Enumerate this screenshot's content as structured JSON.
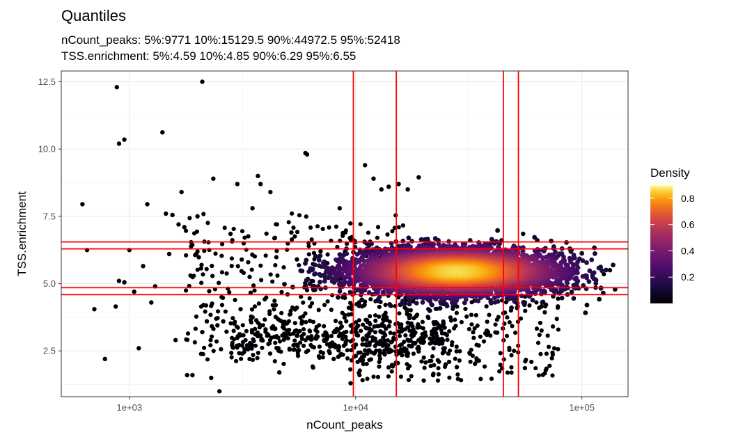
{
  "chart_data": {
    "type": "scatter",
    "title": "Quantiles",
    "subtitle_lines": [
      "nCount_peaks: 5%:9771 10%:15129.5 90%:44972.5 95%:52418",
      "TSS.enrichment: 5%:4.59 10%:4.85 90%:6.29 95%:6.55"
    ],
    "xlabel": "nCount_peaks",
    "ylabel": "TSS.enrichment",
    "x_scale": "log10",
    "xlim": [
      500,
      160000
    ],
    "ylim": [
      0.8,
      12.9
    ],
    "x_ticks": [
      {
        "value": 1000,
        "label": "1e+03"
      },
      {
        "value": 10000,
        "label": "1e+04"
      },
      {
        "value": 100000,
        "label": "1e+05"
      }
    ],
    "y_ticks": [
      {
        "value": 2.5,
        "label": "2.5"
      },
      {
        "value": 5.0,
        "label": "5.0"
      },
      {
        "value": 7.5,
        "label": "7.5"
      },
      {
        "value": 10.0,
        "label": "10.0"
      },
      {
        "value": 12.5,
        "label": "12.5"
      }
    ],
    "grid": true,
    "vlines": [
      9771,
      15129.5,
      44972.5,
      52418
    ],
    "hlines": [
      4.59,
      4.85,
      6.29,
      6.55
    ],
    "line_color": "#ff0000",
    "legend": {
      "title": "Density",
      "position": "right",
      "ticks": [
        {
          "value": 0.2,
          "label": "0.2"
        },
        {
          "value": 0.4,
          "label": "0.4"
        },
        {
          "value": 0.6,
          "label": "0.6"
        },
        {
          "value": 0.8,
          "label": "0.8"
        }
      ],
      "range": [
        0.0,
        0.9
      ],
      "colormap": "inferno"
    },
    "density_center": {
      "x": 28000,
      "y": 5.45
    },
    "points": [
      [
        880,
        12.3
      ],
      [
        2100,
        12.5
      ],
      [
        900,
        10.2
      ],
      [
        950,
        10.35
      ],
      [
        1400,
        10.62
      ],
      [
        6000,
        9.85
      ],
      [
        6100,
        9.8
      ],
      [
        620,
        7.95
      ],
      [
        650,
        6.25
      ],
      [
        700,
        4.05
      ],
      [
        780,
        2.2
      ],
      [
        870,
        4.15
      ],
      [
        900,
        5.1
      ],
      [
        950,
        5.05
      ],
      [
        1000,
        6.25
      ],
      [
        1050,
        4.7
      ],
      [
        1100,
        2.6
      ],
      [
        1150,
        5.65
      ],
      [
        1200,
        7.95
      ],
      [
        1250,
        4.3
      ],
      [
        1300,
        4.9
      ],
      [
        1450,
        7.6
      ],
      [
        1500,
        6.1
      ],
      [
        1550,
        7.55
      ],
      [
        1600,
        2.9
      ],
      [
        1650,
        7.2
      ],
      [
        1700,
        8.4
      ],
      [
        1750,
        7.1
      ],
      [
        1800,
        1.6
      ],
      [
        1900,
        1.6
      ],
      [
        2000,
        7.5
      ],
      [
        2100,
        3.2
      ],
      [
        2200,
        3.6
      ],
      [
        2300,
        1.5
      ],
      [
        2350,
        8.9
      ],
      [
        2450,
        3.45
      ],
      [
        2500,
        1.0
      ],
      [
        2600,
        3.6
      ],
      [
        2800,
        6.85
      ],
      [
        3000,
        8.7
      ],
      [
        3100,
        4.05
      ],
      [
        3200,
        6.5
      ],
      [
        3400,
        5.25
      ],
      [
        3500,
        7.8
      ],
      [
        3700,
        9.0
      ],
      [
        3800,
        8.7
      ],
      [
        4000,
        3.3
      ],
      [
        4200,
        8.4
      ],
      [
        4400,
        6.7
      ],
      [
        4600,
        1.7
      ],
      [
        5000,
        4.6
      ],
      [
        5200,
        6.9
      ],
      [
        5500,
        5.9
      ],
      [
        5800,
        3.6
      ],
      [
        6500,
        4.8
      ],
      [
        7000,
        6.2
      ],
      [
        7500,
        3.0
      ],
      [
        8000,
        2.2
      ],
      [
        8500,
        7.8
      ],
      [
        9000,
        6.9
      ],
      [
        9500,
        1.3
      ],
      [
        11000,
        9.4
      ],
      [
        12000,
        8.9
      ],
      [
        13000,
        8.5
      ],
      [
        14000,
        8.6
      ],
      [
        15500,
        8.7
      ],
      [
        17000,
        8.5
      ],
      [
        19000,
        8.95
      ],
      [
        18000,
        3.3
      ],
      [
        20000,
        1.4
      ],
      [
        22000,
        1.6
      ],
      [
        25000,
        2.0
      ],
      [
        28000,
        1.9
      ],
      [
        32000,
        2.4
      ],
      [
        35000,
        2.7
      ],
      [
        38000,
        3.1
      ],
      [
        45000,
        3.9
      ],
      [
        55000,
        6.85
      ],
      [
        90000,
        6.25
      ],
      [
        115000,
        4.85
      ],
      [
        125000,
        5.35
      ],
      [
        133000,
        5.5
      ]
    ]
  }
}
